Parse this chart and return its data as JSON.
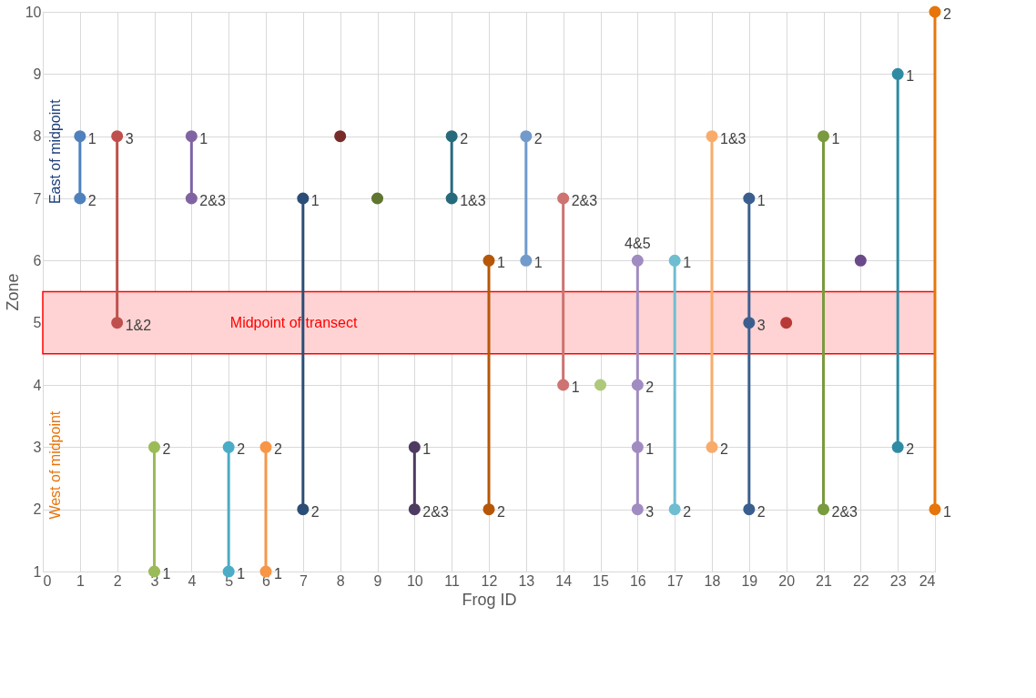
{
  "chart_data": {
    "type": "line",
    "xlabel": "Frog ID",
    "ylabel": "Zone",
    "xlim": [
      0,
      24
    ],
    "xticks": [
      0,
      1,
      2,
      3,
      4,
      5,
      6,
      7,
      8,
      9,
      10,
      11,
      12,
      13,
      14,
      15,
      16,
      17,
      18,
      19,
      20,
      21,
      22,
      23,
      24
    ],
    "ylim": [
      1,
      10
    ],
    "yticks": [
      1,
      2,
      3,
      4,
      5,
      6,
      7,
      8,
      9,
      10
    ],
    "grid": true,
    "legend": false,
    "marker": "circle",
    "line_style": "solid",
    "annotations": [
      "East of midpoint",
      "West of midpoint",
      {
        "text": "1",
        "x": 1,
        "y": 8
      },
      {
        "text": "2",
        "x": 1,
        "y": 7
      },
      {
        "text": "3",
        "x": 2,
        "y": 8
      },
      {
        "text": "1&2",
        "x": 2,
        "y": 5
      },
      {
        "text": "2",
        "x": 3,
        "y": 3
      },
      {
        "text": "1",
        "x": 3,
        "y": 1
      },
      {
        "text": "1",
        "x": 4,
        "y": 8
      },
      {
        "text": "2&3",
        "x": 4,
        "y": 7
      },
      {
        "text": "2",
        "x": 5,
        "y": 3
      },
      {
        "text": "1",
        "x": 5,
        "y": 1
      },
      {
        "text": "2",
        "x": 6,
        "y": 3
      },
      {
        "text": "1",
        "x": 6,
        "y": 1
      },
      {
        "text": "1",
        "x": 7,
        "y": 7
      },
      {
        "text": "2",
        "x": 7,
        "y": 2
      },
      {
        "text": "1",
        "x": 10,
        "y": 3
      },
      {
        "text": "2&3",
        "x": 10,
        "y": 2
      },
      {
        "text": "2",
        "x": 11,
        "y": 8
      },
      {
        "text": "1&3",
        "x": 11,
        "y": 7
      },
      {
        "text": "1",
        "x": 12,
        "y": 6
      },
      {
        "text": "2",
        "x": 12,
        "y": 2
      },
      {
        "text": "2",
        "x": 13,
        "y": 8
      },
      {
        "text": "1",
        "x": 13,
        "y": 6
      },
      {
        "text": "2&3",
        "x": 14,
        "y": 7
      },
      {
        "text": "1",
        "x": 14,
        "y": 4
      },
      {
        "text": "4&5",
        "x": 16,
        "y": 6
      },
      {
        "text": "2",
        "x": 16,
        "y": 4
      },
      {
        "text": "1",
        "x": 16,
        "y": 3
      },
      {
        "text": "3",
        "x": 16,
        "y": 2
      },
      {
        "text": "1",
        "x": 17,
        "y": 6
      },
      {
        "text": "2",
        "x": 17,
        "y": 2
      },
      {
        "text": "1&3",
        "x": 18,
        "y": 8
      },
      {
        "text": "2",
        "x": 18,
        "y": 3
      },
      {
        "text": "1",
        "x": 19,
        "y": 7
      },
      {
        "text": "3",
        "x": 19,
        "y": 5
      },
      {
        "text": "2",
        "x": 19,
        "y": 2
      },
      {
        "text": "1",
        "x": 21,
        "y": 8
      },
      {
        "text": "2&3",
        "x": 21,
        "y": 2
      },
      {
        "text": "1",
        "x": 23,
        "y": 9
      },
      {
        "text": "2",
        "x": 23,
        "y": 3
      },
      {
        "text": "2",
        "x": 24,
        "y": 10
      },
      {
        "text": "1",
        "x": 24,
        "y": 2
      }
    ],
    "bands": [
      {
        "axis": "y",
        "from": 4.5,
        "to": 5.5,
        "label": "Midpoint of transect",
        "color": "#ffd3d3"
      }
    ],
    "series": [
      {
        "x": [
          1,
          1
        ],
        "values": [
          8,
          7
        ],
        "color": "#4f81bd"
      },
      {
        "x": [
          2,
          2
        ],
        "values": [
          8,
          5
        ],
        "color": "#c0504d"
      },
      {
        "x": [
          3,
          3
        ],
        "values": [
          3,
          1
        ],
        "color": "#9bbb59"
      },
      {
        "x": [
          4,
          4
        ],
        "values": [
          8,
          7
        ],
        "color": "#8064a2"
      },
      {
        "x": [
          5,
          5
        ],
        "values": [
          3,
          1
        ],
        "color": "#4bacc6"
      },
      {
        "x": [
          6,
          6
        ],
        "values": [
          3,
          1
        ],
        "color": "#f79646"
      },
      {
        "x": [
          7,
          7
        ],
        "values": [
          7,
          2
        ],
        "color": "#2c4d75"
      },
      {
        "x": [
          8
        ],
        "values": [
          8
        ],
        "color": "#772c2a"
      },
      {
        "x": [
          9
        ],
        "values": [
          7
        ],
        "color": "#5f7530"
      },
      {
        "x": [
          10,
          10
        ],
        "values": [
          3,
          2
        ],
        "color": "#4d3b62"
      },
      {
        "x": [
          11,
          11
        ],
        "values": [
          8,
          7
        ],
        "color": "#276a7c"
      },
      {
        "x": [
          12,
          12
        ],
        "values": [
          6,
          2
        ],
        "color": "#b65708"
      },
      {
        "x": [
          13,
          13
        ],
        "values": [
          8,
          6
        ],
        "color": "#729aca"
      },
      {
        "x": [
          14,
          14
        ],
        "values": [
          7,
          4
        ],
        "color": "#cd7371"
      },
      {
        "x": [
          15
        ],
        "values": [
          4
        ],
        "color": "#afc97a"
      },
      {
        "x": [
          16,
          16,
          16,
          16
        ],
        "values": [
          6,
          4,
          3,
          2
        ],
        "color": "#a08cc0"
      },
      {
        "x": [
          17,
          17
        ],
        "values": [
          6,
          2
        ],
        "color": "#6fbdd1"
      },
      {
        "x": [
          18,
          18
        ],
        "values": [
          8,
          3
        ],
        "color": "#f9ab6b"
      },
      {
        "x": [
          19,
          19,
          19
        ],
        "values": [
          7,
          5,
          2
        ],
        "color": "#3a5f8f"
      },
      {
        "x": [
          20
        ],
        "values": [
          5
        ],
        "color": "#b83a36"
      },
      {
        "x": [
          21,
          21
        ],
        "values": [
          8,
          2
        ],
        "color": "#7a9a3f"
      },
      {
        "x": [
          22
        ],
        "values": [
          6
        ],
        "color": "#6a4a8a"
      },
      {
        "x": [
          23,
          23
        ],
        "values": [
          9,
          3
        ],
        "color": "#2e8ba3"
      },
      {
        "x": [
          24,
          24
        ],
        "values": [
          10,
          2
        ],
        "color": "#e6750c"
      }
    ]
  }
}
